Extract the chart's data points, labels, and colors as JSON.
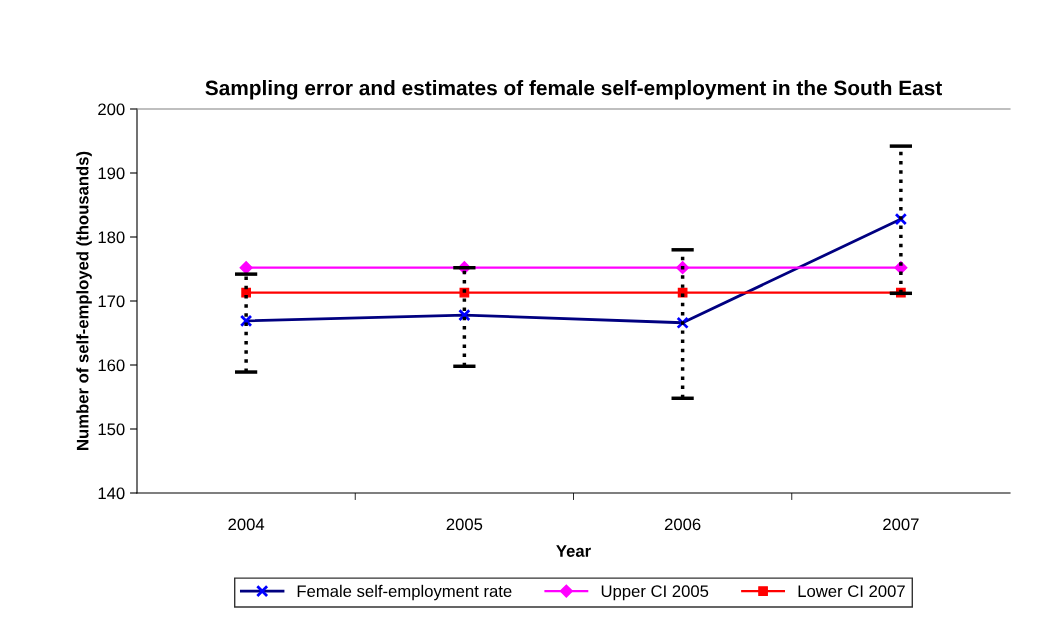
{
  "chart_data": {
    "type": "line",
    "title": "Sampling error and estimates of female self-employment in the South East",
    "xlabel": "Year",
    "ylabel": "Number of self-employed (thousands)",
    "categories": [
      "2004",
      "2005",
      "2006",
      "2007"
    ],
    "series": [
      {
        "name": "Female self-employment rate",
        "color": "#000080",
        "marker": "cross",
        "values": [
          166.9,
          167.8,
          166.6,
          182.8
        ],
        "errors": [
          [
            158.9,
            174.2
          ],
          [
            159.8,
            175.2
          ],
          [
            154.8,
            178.0
          ],
          [
            171.2,
            194.2
          ]
        ]
      },
      {
        "name": "Upper CI 2005",
        "color": "#ff00ff",
        "marker": "diamond",
        "values": [
          175.2,
          175.2,
          175.2,
          175.2
        ]
      },
      {
        "name": "Lower CI 2007",
        "color": "#ff0000",
        "marker": "square",
        "values": [
          171.3,
          171.3,
          171.3,
          171.3
        ]
      }
    ],
    "ylim": [
      140,
      200
    ],
    "yticks": [
      140,
      150,
      160,
      170,
      180,
      190,
      200
    ],
    "grid": false,
    "legend": "bottom",
    "line_style": "solid"
  }
}
